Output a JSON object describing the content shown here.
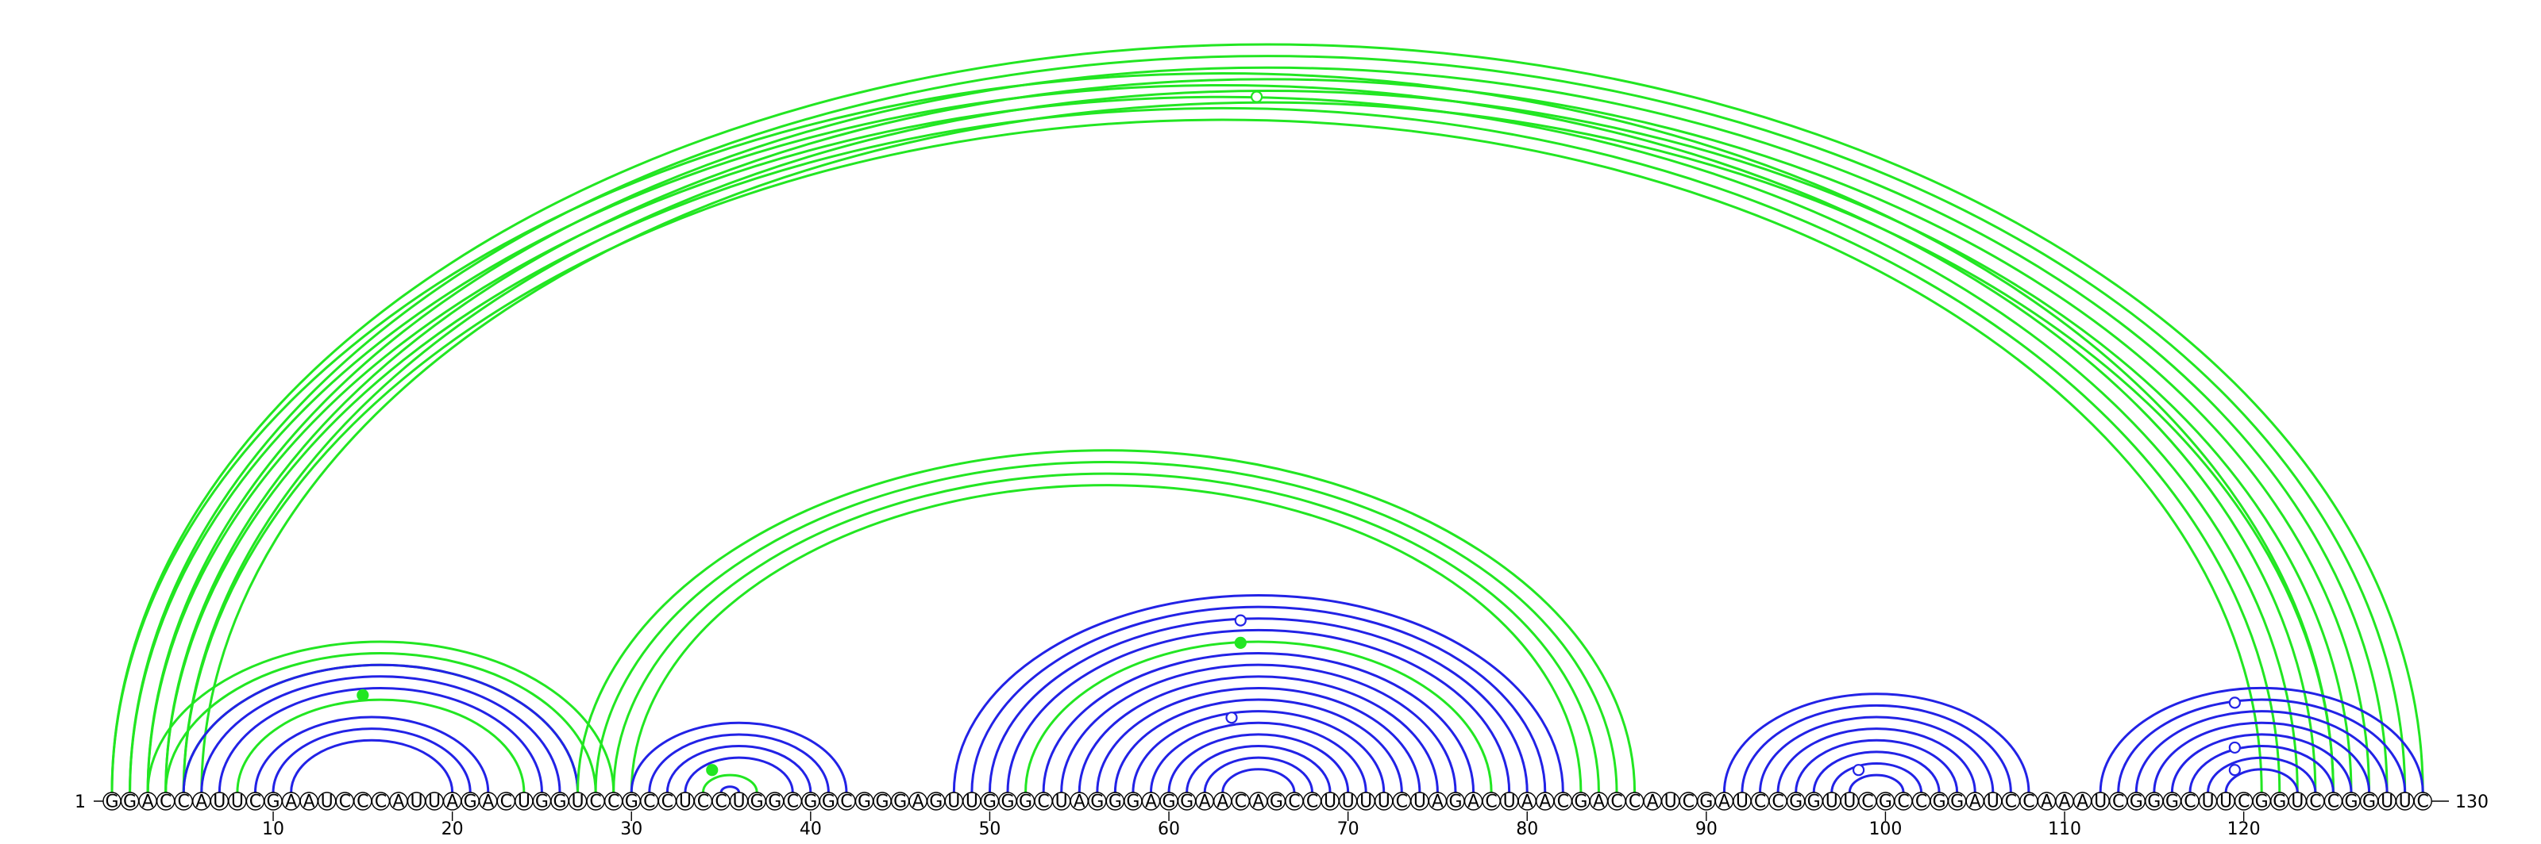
{
  "sequence": "GGACCAUUCGAAUCCCAUUAGACUGGUCCGCCUCCUGGCGGCGGGAGUUGGGCUAGGGAGGAACAGCCUUUUCUAGACUAACGACCAUCGAUCCGGUUCGCCGGAUCCAAAUCGGGCUUCGGUCCGGUUC",
  "start_label": "1",
  "end_label": "130",
  "ticks": [
    "10",
    "20",
    "30",
    "40",
    "50",
    "60",
    "70",
    "80",
    "90",
    "100",
    "110",
    "120"
  ],
  "colors": {
    "primary": "#2222e6",
    "secondary": "#22e622"
  },
  "arcs": [
    {
      "i": 1,
      "j": 130,
      "color": "green"
    },
    {
      "i": 2,
      "j": 129,
      "color": "green"
    },
    {
      "i": 3,
      "j": 128,
      "color": "green"
    },
    {
      "i": 4,
      "j": 127,
      "color": "green"
    },
    {
      "i": 5,
      "j": 126,
      "color": "green"
    },
    {
      "i": 6,
      "j": 125,
      "color": "green"
    },
    {
      "i": 1,
      "j": 125,
      "color": "green"
    },
    {
      "i": 2,
      "j": 124,
      "color": "green"
    },
    {
      "i": 3,
      "j": 123,
      "color": "green"
    },
    {
      "i": 4,
      "j": 122,
      "color": "green"
    },
    {
      "i": 5,
      "j": 121,
      "color": "green"
    },
    {
      "i": 3,
      "j": 29,
      "color": "green"
    },
    {
      "i": 4,
      "j": 28,
      "color": "green"
    },
    {
      "i": 5,
      "j": 27,
      "color": "green"
    },
    {
      "i": 5,
      "j": 27,
      "color": "blue"
    },
    {
      "i": 6,
      "j": 26,
      "color": "blue"
    },
    {
      "i": 7,
      "j": 25,
      "color": "blue"
    },
    {
      "i": 8,
      "j": 24,
      "color": "green"
    },
    {
      "i": 9,
      "j": 22,
      "color": "blue"
    },
    {
      "i": 10,
      "j": 21,
      "color": "blue"
    },
    {
      "i": 11,
      "j": 20,
      "color": "blue"
    },
    {
      "i": 27,
      "j": 86,
      "color": "green"
    },
    {
      "i": 28,
      "j": 85,
      "color": "green"
    },
    {
      "i": 29,
      "j": 84,
      "color": "green"
    },
    {
      "i": 30,
      "j": 83,
      "color": "green"
    },
    {
      "i": 30,
      "j": 42,
      "color": "blue"
    },
    {
      "i": 31,
      "j": 41,
      "color": "blue"
    },
    {
      "i": 32,
      "j": 40,
      "color": "blue"
    },
    {
      "i": 33,
      "j": 39,
      "color": "blue"
    },
    {
      "i": 34,
      "j": 37,
      "color": "green"
    },
    {
      "i": 35,
      "j": 36,
      "color": "blue"
    },
    {
      "i": 48,
      "j": 82,
      "color": "blue"
    },
    {
      "i": 49,
      "j": 81,
      "color": "blue"
    },
    {
      "i": 50,
      "j": 80,
      "color": "blue"
    },
    {
      "i": 51,
      "j": 79,
      "color": "blue"
    },
    {
      "i": 52,
      "j": 78,
      "color": "green"
    },
    {
      "i": 53,
      "j": 77,
      "color": "blue"
    },
    {
      "i": 54,
      "j": 76,
      "color": "blue"
    },
    {
      "i": 55,
      "j": 75,
      "color": "blue"
    },
    {
      "i": 56,
      "j": 74,
      "color": "blue"
    },
    {
      "i": 57,
      "j": 73,
      "color": "blue"
    },
    {
      "i": 58,
      "j": 72,
      "color": "blue"
    },
    {
      "i": 59,
      "j": 71,
      "color": "blue"
    },
    {
      "i": 60,
      "j": 70,
      "color": "blue"
    },
    {
      "i": 61,
      "j": 69,
      "color": "blue"
    },
    {
      "i": 62,
      "j": 68,
      "color": "blue"
    },
    {
      "i": 63,
      "j": 67,
      "color": "blue"
    },
    {
      "i": 91,
      "j": 108,
      "color": "blue"
    },
    {
      "i": 92,
      "j": 107,
      "color": "blue"
    },
    {
      "i": 93,
      "j": 106,
      "color": "blue"
    },
    {
      "i": 94,
      "j": 105,
      "color": "blue"
    },
    {
      "i": 95,
      "j": 104,
      "color": "blue"
    },
    {
      "i": 96,
      "j": 103,
      "color": "blue"
    },
    {
      "i": 97,
      "j": 102,
      "color": "blue"
    },
    {
      "i": 98,
      "j": 101,
      "color": "blue"
    },
    {
      "i": 112,
      "j": 130,
      "color": "blue"
    },
    {
      "i": 113,
      "j": 129,
      "color": "blue"
    },
    {
      "i": 114,
      "j": 128,
      "color": "blue"
    },
    {
      "i": 115,
      "j": 127,
      "color": "blue"
    },
    {
      "i": 116,
      "j": 126,
      "color": "blue"
    },
    {
      "i": 117,
      "j": 125,
      "color": "blue"
    },
    {
      "i": 118,
      "j": 124,
      "color": "blue"
    },
    {
      "i": 119,
      "j": 123,
      "color": "blue"
    }
  ],
  "markers": [
    {
      "x": 64.9,
      "h": 0.93,
      "color": "green",
      "filled": false
    },
    {
      "x": 15.0,
      "h": 0.13,
      "color": "green",
      "filled": true
    },
    {
      "x": 34.5,
      "h": 0.03,
      "color": "green",
      "filled": true
    },
    {
      "x": 64.0,
      "h": 0.23,
      "color": "blue",
      "filled": false
    },
    {
      "x": 64.0,
      "h": 0.2,
      "color": "green",
      "filled": true
    },
    {
      "x": 63.5,
      "h": 0.1,
      "color": "blue",
      "filled": false
    },
    {
      "x": 98.5,
      "h": 0.03,
      "color": "blue",
      "filled": false
    },
    {
      "x": 119.5,
      "h": 0.12,
      "color": "blue",
      "filled": false
    },
    {
      "x": 119.5,
      "h": 0.06,
      "color": "blue",
      "filled": false
    },
    {
      "x": 119.5,
      "h": 0.03,
      "color": "blue",
      "filled": false
    }
  ]
}
